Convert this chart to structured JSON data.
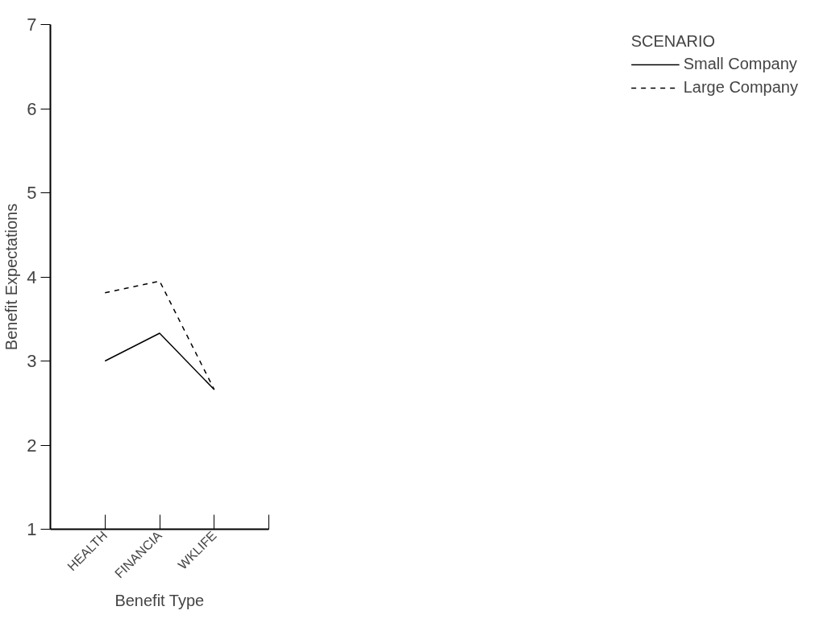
{
  "chart_data": {
    "type": "line",
    "xlabel": "Benefit Type",
    "ylabel": "Benefit Expectations",
    "legend_title": "SCENARIO",
    "legend": "right",
    "categories": [
      "HEALTH",
      "FINANCIA",
      "WKLIFE"
    ],
    "ylim": [
      1,
      7
    ],
    "yticks": [
      1,
      2,
      3,
      4,
      5,
      6,
      7
    ],
    "grid": false,
    "series": [
      {
        "name": "Small Company",
        "color": "#000000",
        "line_style": "solid",
        "values": [
          3.0,
          3.33,
          2.66
        ]
      },
      {
        "name": "Large Company",
        "color": "#000000",
        "line_style": "dashed",
        "values": [
          3.81,
          3.95,
          2.66
        ]
      }
    ]
  }
}
